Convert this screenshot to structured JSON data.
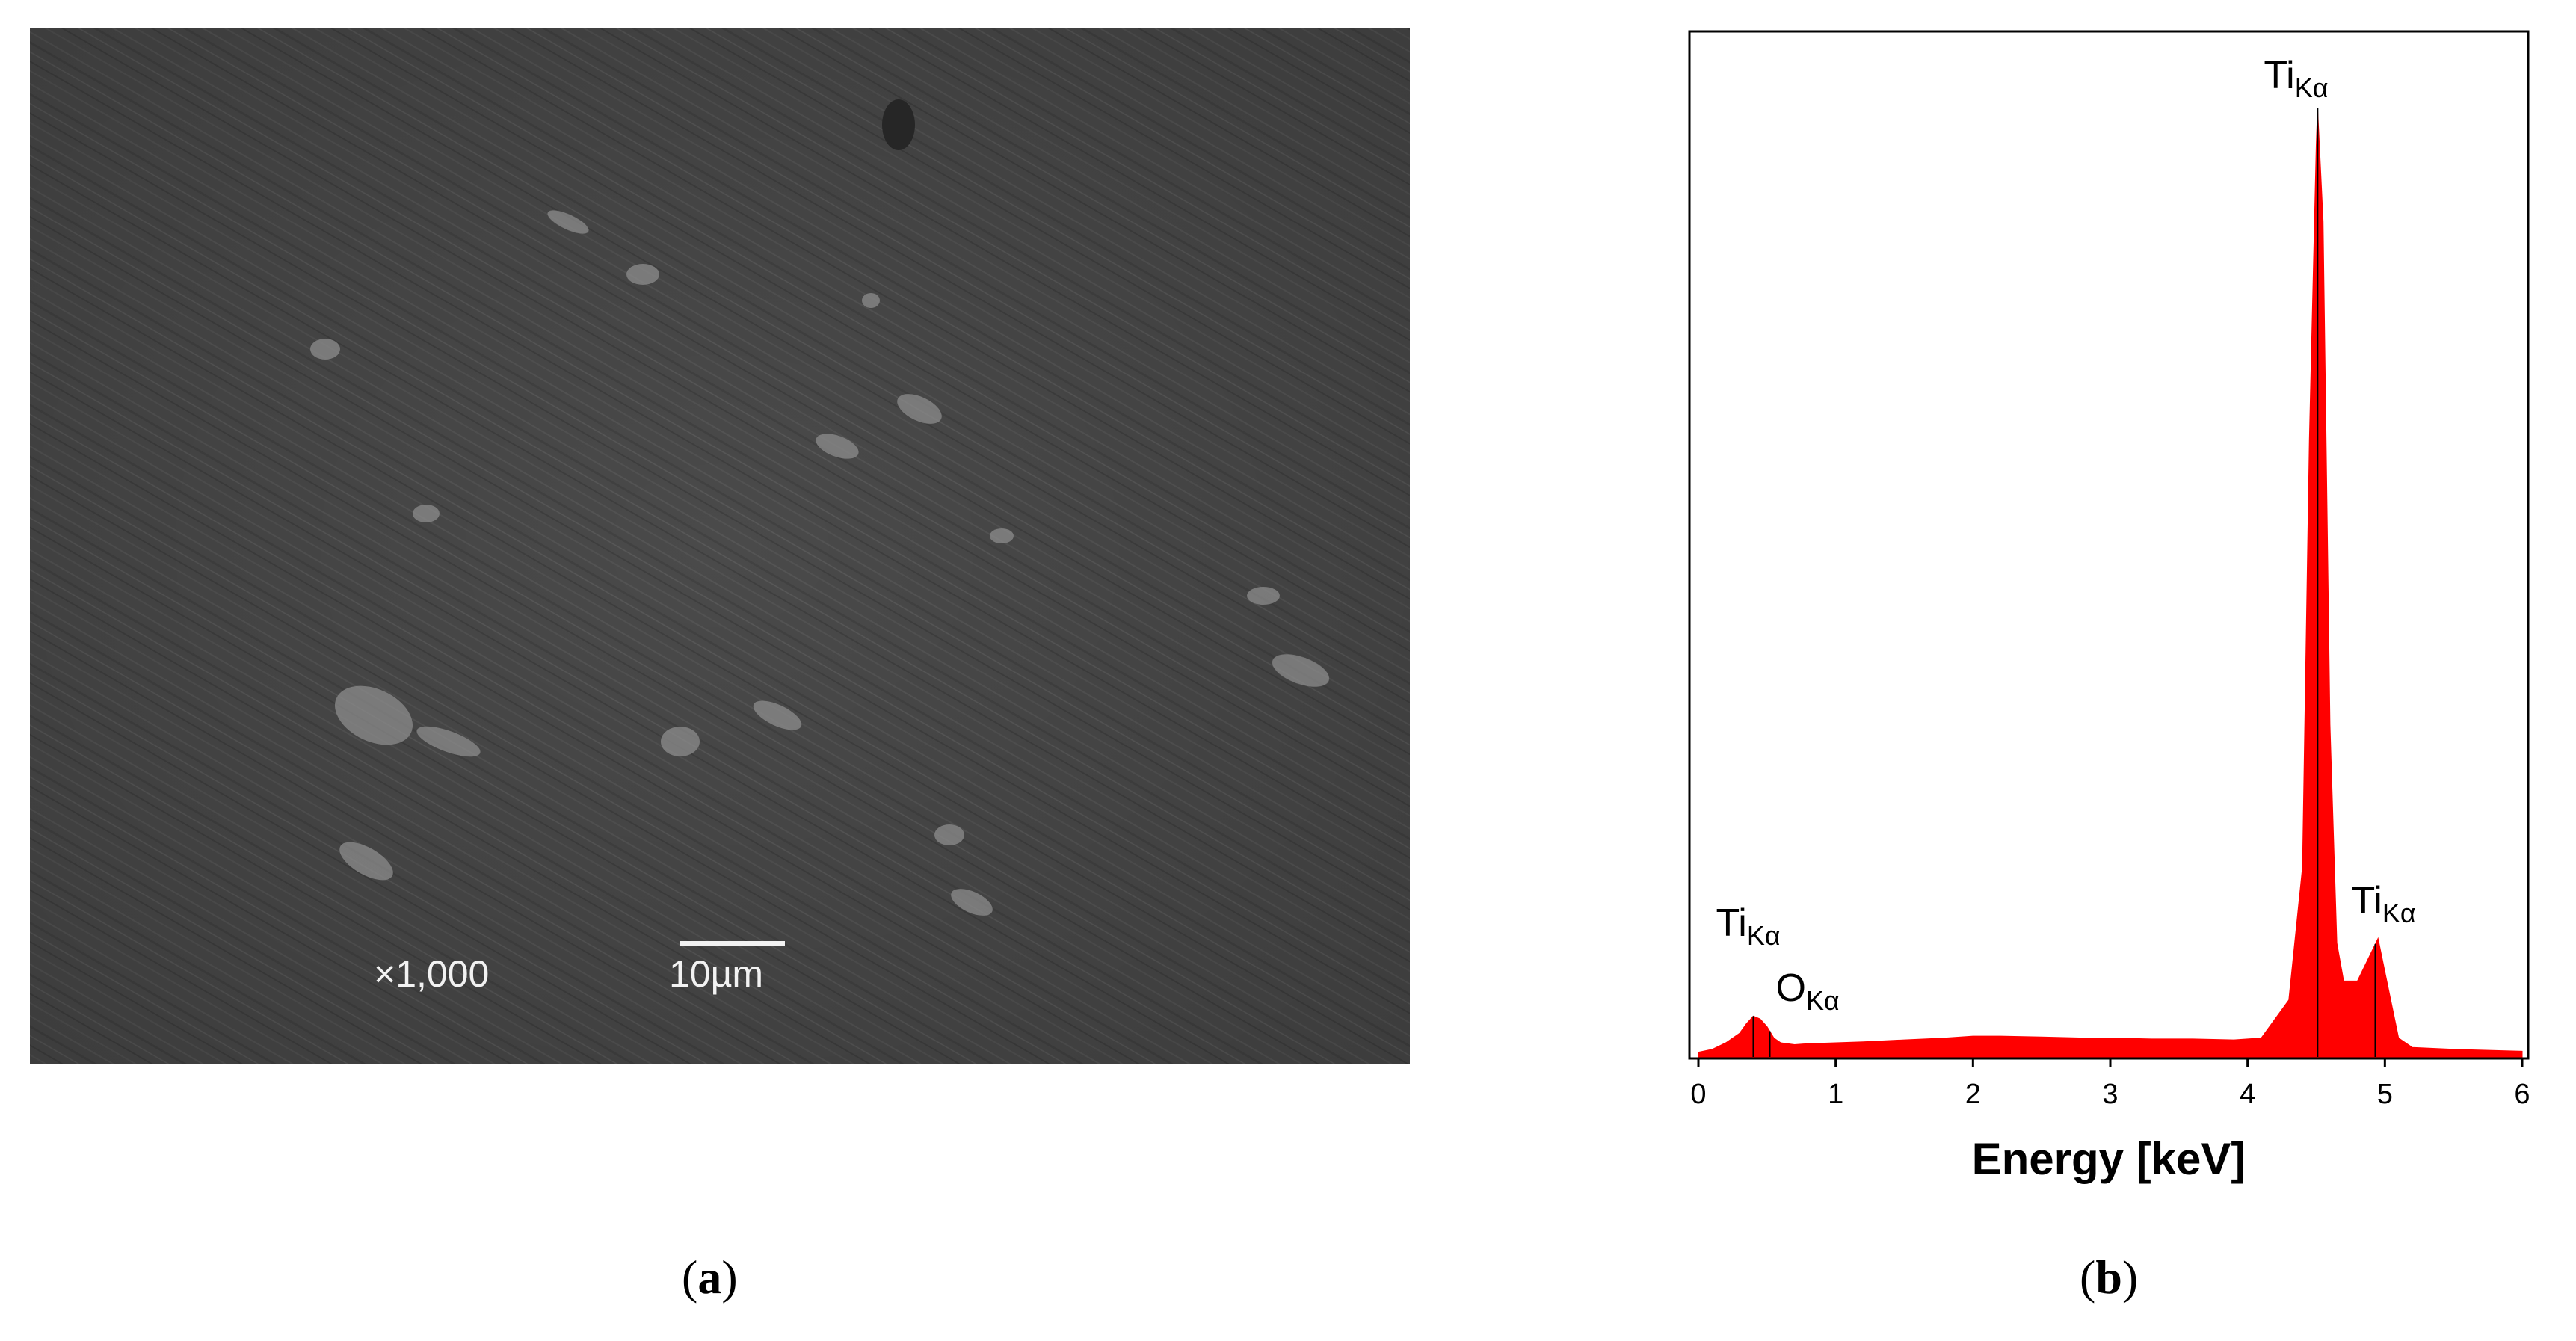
{
  "panel_a": {
    "magnification": "×1,000",
    "scale_bar": "10µm",
    "caption_letter": "a"
  },
  "panel_b": {
    "caption_letter": "b"
  },
  "chart_data": {
    "type": "area",
    "title": "",
    "xlabel": "Energy [keV]",
    "ylabel": "",
    "xlim": [
      0,
      6
    ],
    "x_ticks": [
      "0",
      "1",
      "2",
      "3",
      "4",
      "5",
      "6"
    ],
    "grid": false,
    "legend": "none",
    "fill_color": "#ff0000",
    "series": [
      {
        "x": [
          0.0,
          0.1,
          0.2,
          0.3,
          0.35,
          0.4,
          0.45,
          0.5,
          0.55,
          0.6,
          0.7,
          0.8,
          1.0,
          1.2,
          1.5,
          1.8,
          2.0,
          2.2,
          2.5,
          2.8,
          3.0,
          3.3,
          3.6,
          3.9,
          4.1,
          4.3,
          4.4,
          4.45,
          4.5,
          4.51,
          4.55,
          4.6,
          4.65,
          4.7,
          4.8,
          4.9,
          4.95,
          5.0,
          5.1,
          5.2,
          5.5,
          6.0
        ],
        "y": [
          0.5,
          0.8,
          1.5,
          2.5,
          3.5,
          4.3,
          4.0,
          3.2,
          2.0,
          1.5,
          1.3,
          1.4,
          1.5,
          1.6,
          1.8,
          2.0,
          2.2,
          2.2,
          2.1,
          2.0,
          2.0,
          1.9,
          1.9,
          1.8,
          2.0,
          6.0,
          20.0,
          65.0,
          96.0,
          100.0,
          88.0,
          35.0,
          12.0,
          8.0,
          8.0,
          11.0,
          12.5,
          9.0,
          2.0,
          1.0,
          0.8,
          0.6
        ]
      }
    ],
    "annotations": [
      {
        "element": "Ti",
        "subscript": "Kα",
        "x": 0.4
      },
      {
        "element": "O",
        "subscript": "Kα",
        "x": 0.52
      },
      {
        "element": "Ti",
        "subscript": "Kα",
        "x": 4.51
      },
      {
        "element": "Ti",
        "subscript": "Kα",
        "x": 4.93
      }
    ]
  }
}
